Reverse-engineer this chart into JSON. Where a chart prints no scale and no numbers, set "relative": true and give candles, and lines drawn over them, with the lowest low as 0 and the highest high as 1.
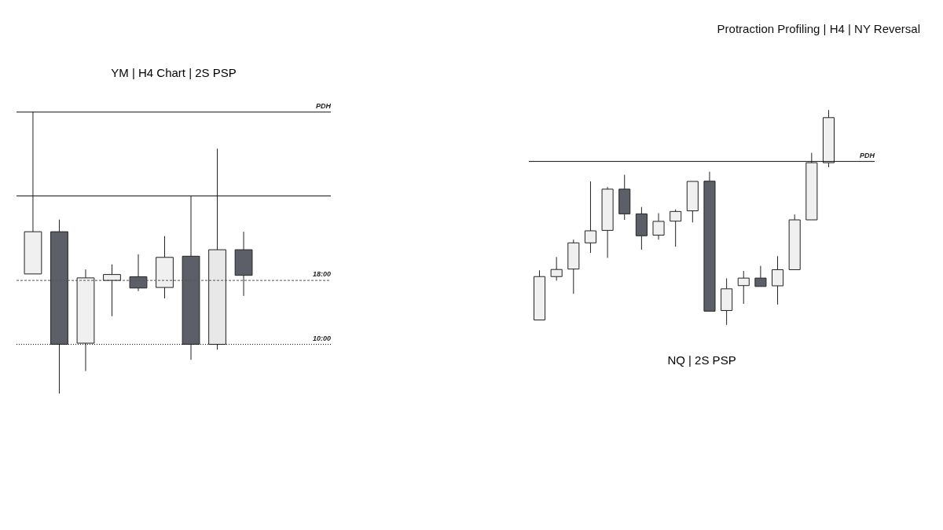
{
  "chart_data": [
    {
      "type": "candlestick",
      "title": "YM | H4 Chart | 2S PSP",
      "relative": true,
      "annotations": [
        "Protraction Profiling | H4 | NY Reversal"
      ],
      "categories": [
        null,
        null,
        null,
        null,
        null,
        null,
        null,
        null,
        null
      ],
      "ohlc": [
        [
          0.425,
          1.0,
          0.425,
          0.575
        ],
        [
          0.575,
          0.618,
          0.0,
          0.175
        ],
        [
          0.179,
          0.441,
          0.08,
          0.411
        ],
        [
          0.402,
          0.459,
          0.275,
          0.423
        ],
        [
          0.415,
          0.495,
          0.364,
          0.375
        ],
        [
          0.377,
          0.559,
          0.338,
          0.484
        ],
        [
          0.488,
          0.702,
          0.12,
          0.175
        ],
        [
          0.175,
          0.87,
          0.156,
          0.511
        ],
        [
          0.511,
          0.575,
          0.347,
          0.42
        ]
      ],
      "colors": [
        "#f0f0f0",
        "#5c5f68",
        "#f0f0f0",
        "#f0f0f0",
        "#5c5f68",
        "#f0f0f0",
        "#5c5f68",
        "#e8e8e8",
        "#5c5f68"
      ],
      "ref_lines": [
        {
          "axis": "y",
          "value": 1.0,
          "label": "PDH",
          "line_style": "solid",
          "color": "#111111"
        },
        {
          "axis": "y",
          "value": 0.702,
          "label": null,
          "line_style": "solid",
          "color": "#111111"
        },
        {
          "axis": "y",
          "value": 0.402,
          "label": "18:00",
          "line_style": "dashed",
          "color": "#555555"
        },
        {
          "axis": "y",
          "value": 0.175,
          "label": "10:00",
          "line_style": "dotted",
          "color": "#111111"
        }
      ]
    },
    {
      "type": "candlestick",
      "title": "NQ | 2S PSP",
      "relative": true,
      "categories": [
        null,
        null,
        null,
        null,
        null,
        null,
        null,
        null,
        null,
        null,
        null,
        null,
        null,
        null,
        null,
        null,
        null,
        null
      ],
      "ohlc": [
        [
          0.023,
          0.254,
          0.023,
          0.225
        ],
        [
          0.225,
          0.316,
          0.206,
          0.258
        ],
        [
          0.26,
          0.397,
          0.145,
          0.382
        ],
        [
          0.382,
          0.668,
          0.335,
          0.438
        ],
        [
          0.44,
          0.642,
          0.312,
          0.632
        ],
        [
          0.632,
          0.699,
          0.489,
          0.517
        ],
        [
          0.517,
          0.549,
          0.35,
          0.415
        ],
        [
          0.418,
          0.52,
          0.397,
          0.482
        ],
        [
          0.483,
          0.538,
          0.364,
          0.528
        ],
        [
          0.531,
          0.668,
          0.477,
          0.668
        ],
        [
          0.669,
          0.713,
          0.064,
          0.064
        ],
        [
          0.067,
          0.217,
          0.0,
          0.168
        ],
        [
          0.183,
          0.251,
          0.098,
          0.218
        ],
        [
          0.218,
          0.275,
          0.179,
          0.179
        ],
        [
          0.182,
          0.32,
          0.095,
          0.257
        ],
        [
          0.257,
          0.514,
          0.257,
          0.489
        ],
        [
          0.489,
          0.801,
          0.489,
          0.755
        ],
        [
          0.755,
          1.0,
          0.734,
          0.965
        ]
      ],
      "colors": [
        "#f0f0f0",
        "#f0f0f0",
        "#f0f0f0",
        "#f0f0f0",
        "#f0f0f0",
        "#5c5f68",
        "#5c5f68",
        "#f0f0f0",
        "#f0f0f0",
        "#f0f0f0",
        "#5c5f68",
        "#f0f0f0",
        "#f0f0f0",
        "#5c5f68",
        "#f0f0f0",
        "#f0f0f0",
        "#f0f0f0",
        "#f0f0f0"
      ],
      "ref_lines": [
        {
          "axis": "y",
          "value": 0.761,
          "label": "PDH",
          "line_style": "solid",
          "color": "#111111"
        }
      ]
    }
  ]
}
